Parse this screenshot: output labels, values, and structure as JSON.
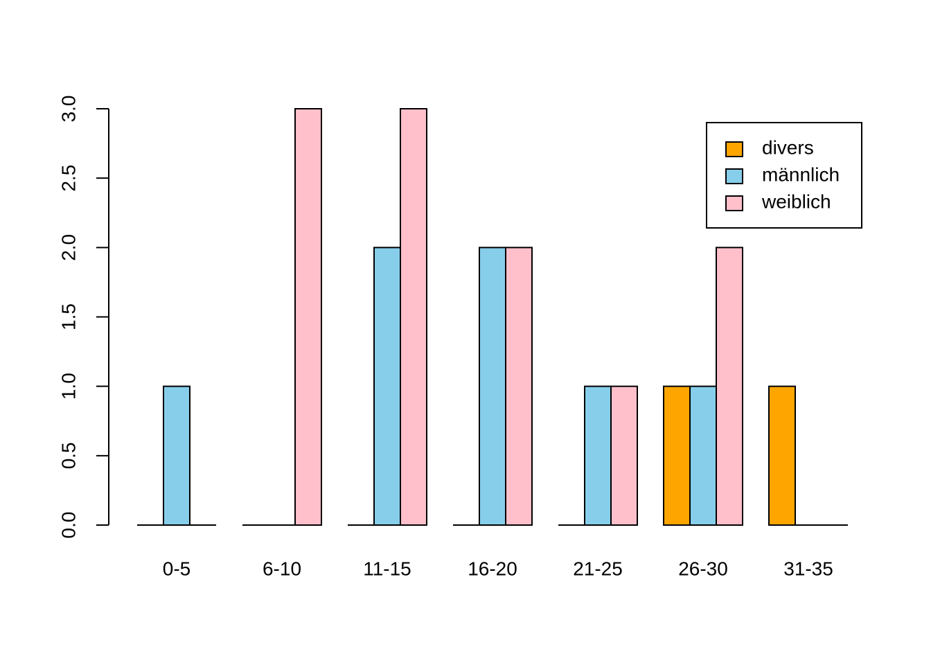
{
  "chart_data": {
    "type": "bar",
    "categories": [
      "0-5",
      "6-10",
      "11-15",
      "16-20",
      "21-25",
      "26-30",
      "31-35"
    ],
    "series": [
      {
        "name": "divers",
        "color": "#FFA500",
        "values": [
          0,
          0,
          0,
          0,
          0,
          1,
          1
        ]
      },
      {
        "name": "männlich",
        "color": "#87CEEB",
        "values": [
          1,
          0,
          2,
          2,
          1,
          1,
          0
        ]
      },
      {
        "name": "weiblich",
        "color": "#FFC0CB",
        "values": [
          0,
          3,
          3,
          2,
          1,
          2,
          0
        ]
      }
    ],
    "ylim": [
      0,
      3
    ],
    "yticks": [
      "0.0",
      "0.5",
      "1.0",
      "1.5",
      "2.0",
      "2.5",
      "3.0"
    ],
    "legend_position": "top-right",
    "grid": false
  }
}
